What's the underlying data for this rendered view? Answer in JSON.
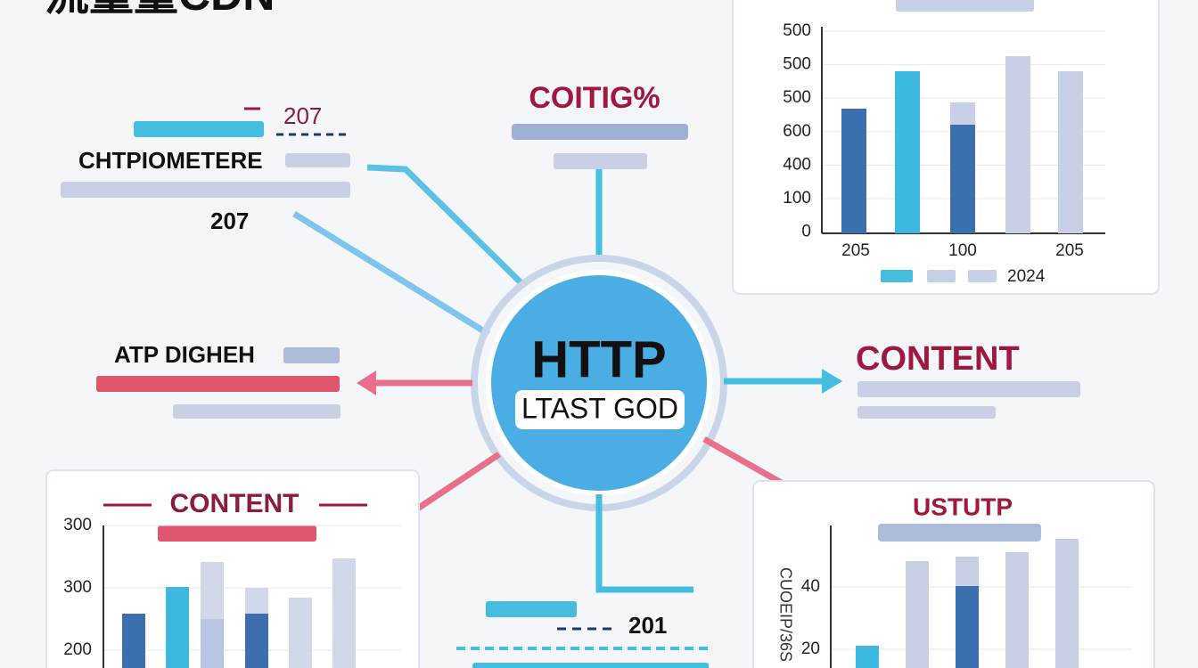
{
  "header": {
    "title": "流量量CDN"
  },
  "top_left": {
    "label_a": "207",
    "heading": "CHTPIOMETERE",
    "label_b": "207"
  },
  "top_center": {
    "heading": "COITIG%"
  },
  "hub": {
    "title": "HTTP",
    "subtitle": "LTAST GOD"
  },
  "left": {
    "heading": "ATP DIGHEH"
  },
  "right": {
    "heading": "CONTENT"
  },
  "top_right_panel": {
    "y_labels": [
      "500",
      "500",
      "500",
      "600",
      "400",
      "100",
      "0"
    ],
    "x_labels": [
      "205",
      "100",
      "205"
    ],
    "legend": "2024"
  },
  "bottom_left_panel": {
    "heading": "CONTENT",
    "y_labels": [
      "300",
      "300",
      "200"
    ]
  },
  "bottom_center": {
    "label": "201"
  },
  "bottom_right_panel": {
    "heading": "USTUTP",
    "y_labels": [
      "40",
      "20"
    ],
    "axis_label": "CUOEIP/36S"
  }
}
